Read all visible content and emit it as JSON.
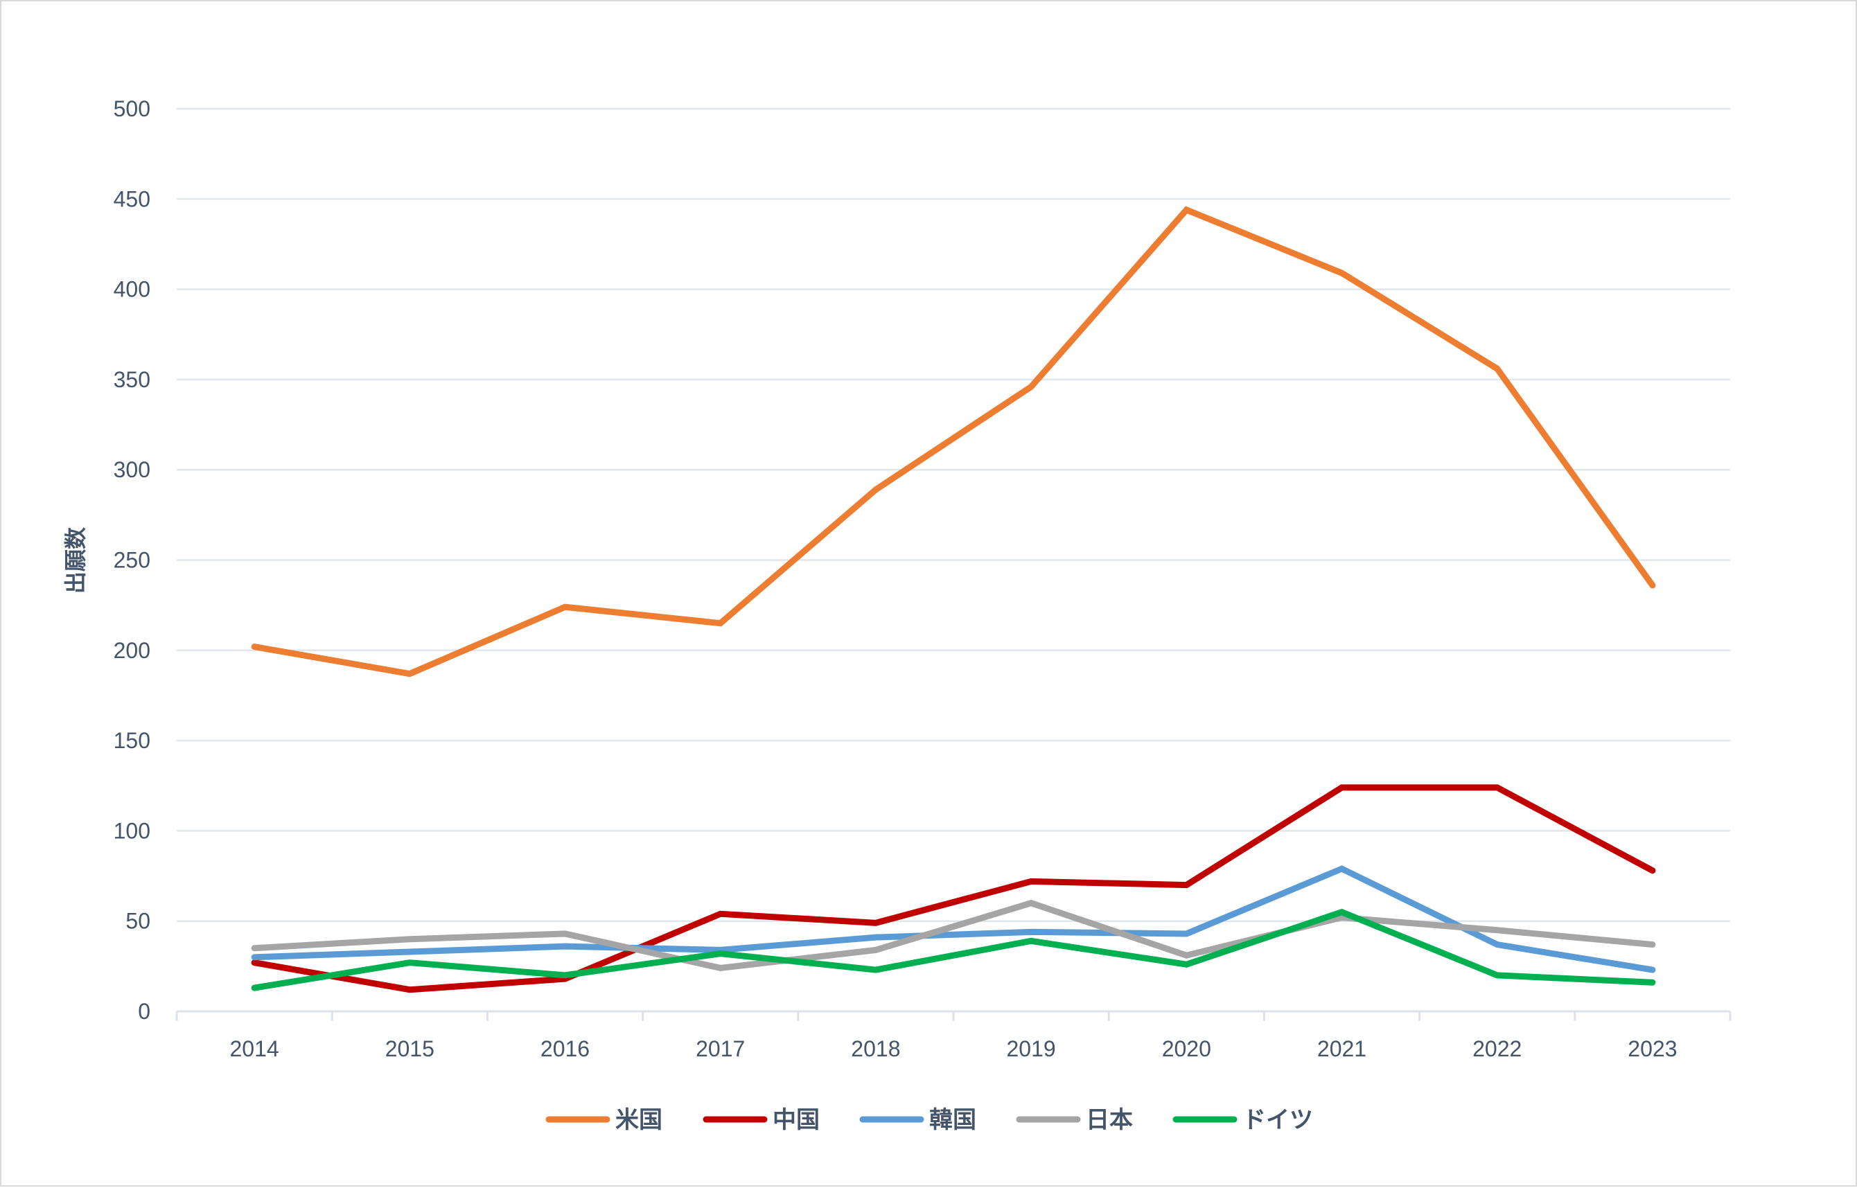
{
  "chart_data": {
    "type": "line",
    "title": "",
    "xlabel": "",
    "ylabel": "出願数",
    "ylim": [
      0,
      500
    ],
    "yticks": [
      0,
      50,
      100,
      150,
      200,
      250,
      300,
      350,
      400,
      450,
      500
    ],
    "grid": true,
    "legend_position": "bottom",
    "categories": [
      "2014",
      "2015",
      "2016",
      "2017",
      "2018",
      "2019",
      "2020",
      "2021",
      "2022",
      "2023"
    ],
    "series": [
      {
        "name": "米国",
        "color": "#ed7d31",
        "values": [
          202,
          187,
          224,
          215,
          289,
          346,
          444,
          409,
          356,
          236
        ]
      },
      {
        "name": "中国",
        "color": "#c00000",
        "values": [
          27,
          12,
          18,
          54,
          49,
          72,
          70,
          124,
          124,
          78
        ]
      },
      {
        "name": "韓国",
        "color": "#5b9bd5",
        "values": [
          30,
          33,
          36,
          34,
          41,
          44,
          43,
          79,
          37,
          23
        ]
      },
      {
        "name": "日本",
        "color": "#a5a5a5",
        "values": [
          35,
          40,
          43,
          24,
          34,
          60,
          31,
          52,
          45,
          37
        ]
      },
      {
        "name": "ドイツ",
        "color": "#00b050",
        "values": [
          13,
          27,
          20,
          32,
          23,
          39,
          26,
          55,
          20,
          16
        ]
      }
    ]
  }
}
